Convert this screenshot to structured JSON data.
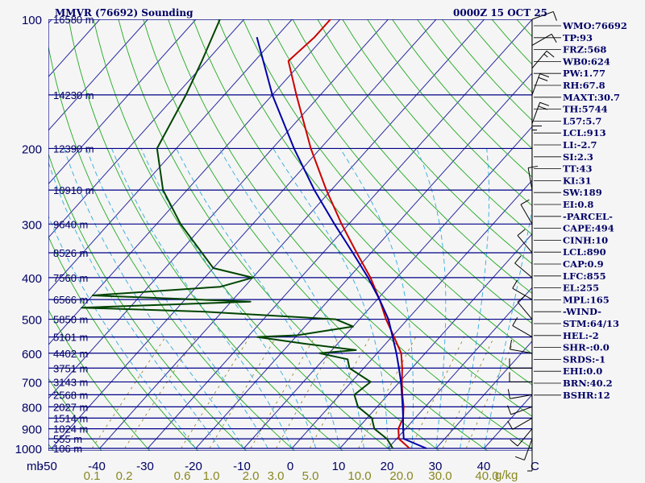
{
  "chart_data": {
    "type": "line",
    "title": "MMVR (76692) Sounding",
    "time_label": "0000Z 15 OCT 25",
    "pressure_axis": {
      "label": "mb",
      "ticks": [
        100,
        200,
        300,
        400,
        500,
        600,
        700,
        800,
        900,
        1000
      ],
      "ylim": [
        1000,
        100
      ]
    },
    "temperature_axis": {
      "ticks": [
        "-50",
        "-40",
        "-30",
        "-20",
        "-10",
        "0",
        "10",
        "20",
        "30",
        "40",
        "C"
      ]
    },
    "mixing_ratio_axis": {
      "unit": "g/kg",
      "labels": [
        "0.1",
        "0.2",
        "0.6",
        "1.0",
        "2.0",
        "3.0",
        "5.0",
        "10.0",
        "20.0",
        "30.0",
        "40.0"
      ]
    },
    "height_levels": [
      {
        "p": 100,
        "h": "16580 m"
      },
      {
        "p": 150,
        "h": "14230 m"
      },
      {
        "p": 200,
        "h": "12390 m"
      },
      {
        "p": 250,
        "h": "10910 m"
      },
      {
        "p": 300,
        "h": "9640 m"
      },
      {
        "p": 350,
        "h": "8526 m"
      },
      {
        "p": 400,
        "h": "7560 m"
      },
      {
        "p": 450,
        "h": "6566 m"
      },
      {
        "p": 500,
        "h": "5850 m"
      },
      {
        "p": 550,
        "h": "5101 m"
      },
      {
        "p": 600,
        "h": "4402 m"
      },
      {
        "p": 650,
        "h": "3751 m"
      },
      {
        "p": 700,
        "h": "3143 m"
      },
      {
        "p": 750,
        "h": "2568 m"
      },
      {
        "p": 800,
        "h": "2027 m"
      },
      {
        "p": 850,
        "h": "1514 m"
      },
      {
        "p": 900,
        "h": "1024 m"
      },
      {
        "p": 950,
        "h": "555 m"
      },
      {
        "p": 1000,
        "h": "106 m"
      }
    ],
    "series": [
      {
        "name": "Temperature",
        "color": "#cc0000",
        "points": [
          [
            1000,
            24.5
          ],
          [
            950,
            20.5
          ],
          [
            900,
            18.5
          ],
          [
            850,
            17.5
          ],
          [
            800,
            15.5
          ],
          [
            750,
            13
          ],
          [
            700,
            10.5
          ],
          [
            650,
            8
          ],
          [
            600,
            5
          ],
          [
            550,
            0.5
          ],
          [
            500,
            -4.5
          ],
          [
            450,
            -9.5
          ],
          [
            400,
            -15.5
          ],
          [
            350,
            -23
          ],
          [
            300,
            -31.5
          ],
          [
            250,
            -41
          ],
          [
            200,
            -52
          ],
          [
            150,
            -65
          ],
          [
            125,
            -73
          ],
          [
            110,
            -72
          ],
          [
            100,
            -72
          ]
        ]
      },
      {
        "name": "Dewpoint",
        "color": "#004400",
        "points": [
          [
            1000,
            21
          ],
          [
            950,
            18
          ],
          [
            900,
            13.5
          ],
          [
            850,
            11
          ],
          [
            800,
            6
          ],
          [
            750,
            3
          ],
          [
            700,
            4
          ],
          [
            650,
            -3
          ],
          [
            620,
            -5
          ],
          [
            600,
            -12
          ],
          [
            590,
            -5
          ],
          [
            570,
            -17
          ],
          [
            550,
            -28
          ],
          [
            545,
            -20
          ],
          [
            520,
            -10
          ],
          [
            500,
            -15
          ],
          [
            480,
            -44
          ],
          [
            470,
            -70
          ],
          [
            455,
            -36
          ],
          [
            440,
            -70
          ],
          [
            420,
            -45
          ],
          [
            400,
            -40
          ],
          [
            380,
            -50
          ],
          [
            300,
            -65
          ],
          [
            250,
            -75
          ],
          [
            200,
            -84
          ],
          [
            150,
            -88
          ],
          [
            125,
            -91
          ],
          [
            100,
            -95
          ]
        ]
      },
      {
        "name": "Parcel",
        "color": "#0000aa",
        "points": [
          [
            1000,
            28
          ],
          [
            950,
            21.5
          ],
          [
            900,
            19.5
          ],
          [
            850,
            17.5
          ],
          [
            800,
            15.3
          ],
          [
            750,
            12.9
          ],
          [
            700,
            10.3
          ],
          [
            650,
            7.3
          ],
          [
            600,
            4
          ],
          [
            550,
            0.2
          ],
          [
            500,
            -4
          ],
          [
            450,
            -9.5
          ],
          [
            400,
            -16
          ],
          [
            350,
            -23.8
          ],
          [
            300,
            -33
          ],
          [
            250,
            -43.5
          ],
          [
            200,
            -55.5
          ],
          [
            150,
            -70
          ],
          [
            110,
            -84
          ]
        ]
      }
    ],
    "wind_barbs": [
      {
        "p": 1000,
        "dir": 180,
        "kt": 5
      },
      {
        "p": 950,
        "dir": 200,
        "kt": 10
      },
      {
        "p": 900,
        "dir": 220,
        "kt": 10
      },
      {
        "p": 850,
        "dir": 240,
        "kt": 10
      },
      {
        "p": 800,
        "dir": 250,
        "kt": 10
      },
      {
        "p": 750,
        "dir": 260,
        "kt": 10
      },
      {
        "p": 700,
        "dir": 270,
        "kt": 10
      },
      {
        "p": 650,
        "dir": 270,
        "kt": 10
      },
      {
        "p": 600,
        "dir": 280,
        "kt": 10
      },
      {
        "p": 550,
        "dir": 300,
        "kt": 10
      },
      {
        "p": 500,
        "dir": 320,
        "kt": 10
      },
      {
        "p": 450,
        "dir": 300,
        "kt": 10
      },
      {
        "p": 400,
        "dir": 310,
        "kt": 10
      },
      {
        "p": 350,
        "dir": 320,
        "kt": 10
      },
      {
        "p": 300,
        "dir": 330,
        "kt": 10
      },
      {
        "p": 250,
        "dir": 350,
        "kt": 10
      },
      {
        "p": 200,
        "dir": 360,
        "kt": 15
      },
      {
        "p": 175,
        "dir": 20,
        "kt": 20
      },
      {
        "p": 150,
        "dir": 20,
        "kt": 20
      },
      {
        "p": 130,
        "dir": 40,
        "kt": 15
      },
      {
        "p": 115,
        "dir": 60,
        "kt": 10
      },
      {
        "p": 100,
        "dir": 70,
        "kt": 10
      }
    ],
    "indices": [
      "WMO:76692",
      "TP:93",
      "FRZ:568",
      "WB0:624",
      "PW:1.77",
      "RH:67.8",
      "MAXT:30.7",
      "TH:5744",
      "L57:5.7",
      "LCL:913",
      "LI:-2.7",
      "SI:2.3",
      "TT:43",
      "KI:31",
      "SW:189",
      "EI:0.8",
      "-PARCEL-",
      "CAPE:494",
      "CINH:10",
      "LCL:890",
      "CAP:0.9",
      "LFC:855",
      "EL:255",
      "MPL:165",
      "-WIND-",
      "STM:64/13",
      "HEL:-2",
      "SHR-:0.0",
      "SRDS:-1",
      "EHI:0.0",
      "BRN:40.2",
      "BSHR:12"
    ]
  },
  "colors": {
    "isobar": "#000088",
    "isotherm": "#2a2aa0",
    "dry_adiabat": "#22aa22",
    "moist_adiabat": "#33aadd",
    "mixing_ratio": "#998833",
    "temperature": "#cc0000",
    "dewpoint": "#004400",
    "parcel": "#0000aa",
    "text": "#000066"
  }
}
